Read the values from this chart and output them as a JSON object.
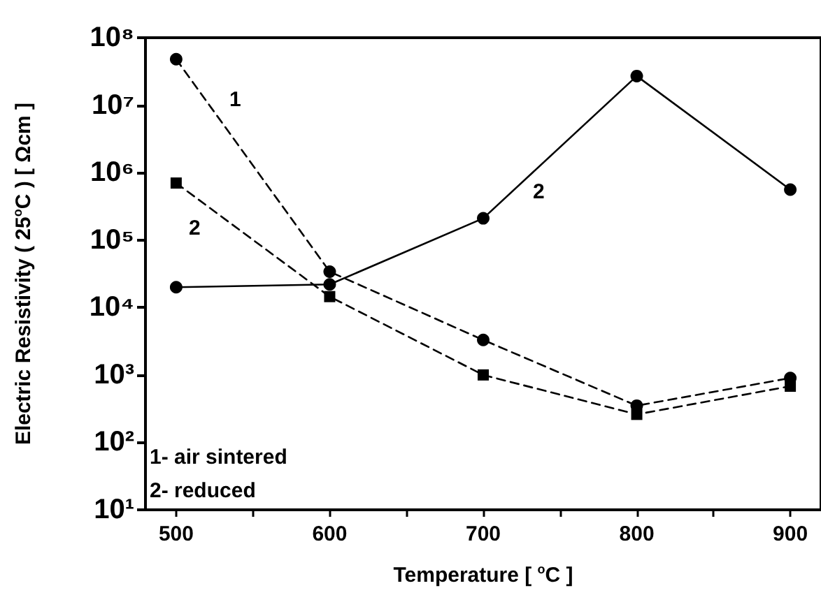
{
  "chart_data": {
    "type": "line",
    "xlabel": "Temperature [ $^{o}$C ]",
    "ylabel": "Electric Resistivity ( 25$^{o}$C ) [ Ωcm ]",
    "x": [
      500,
      600,
      700,
      800,
      900
    ],
    "series": [
      {
        "color": "#000000",
        "line_style": "dashed",
        "marker": "circle",
        "values": [
          48000000,
          34000,
          3300,
          350,
          900
        ]
      },
      {
        "color": "#000000",
        "line_style": "dashed",
        "marker": "square",
        "values": [
          700000,
          14500,
          1000,
          260,
          680
        ]
      },
      {
        "color": "#000000",
        "line_style": "solid",
        "marker": "circle",
        "values": [
          20000,
          22000,
          210000,
          27000000,
          560000
        ]
      }
    ],
    "log": "y",
    "xlim": [
      480,
      920
    ],
    "ylim": [
      10,
      100000000
    ],
    "xticks": [
      500,
      {
        "value": 550,
        "label": null
      },
      600,
      {
        "value": 650,
        "label": null
      },
      700,
      {
        "value": 750,
        "label": null
      },
      800,
      {
        "value": 850,
        "label": null
      },
      900
    ],
    "yticks": [
      {
        "value": 10,
        "label": "10¹"
      },
      {
        "value": 100,
        "label": "10²"
      },
      {
        "value": 1000,
        "label": "10³"
      },
      {
        "value": 10000,
        "label": "10⁴"
      },
      {
        "value": 100000,
        "label": "10⁵"
      },
      {
        "value": 1000000,
        "label": "10⁶"
      },
      {
        "value": 10000000,
        "label": "10⁷"
      },
      {
        "value": 100000000,
        "label": "10⁸"
      }
    ],
    "grid": false,
    "annotations": [
      "1",
      "2",
      "2",
      "1- air sintered",
      "2- reduced"
    ]
  }
}
